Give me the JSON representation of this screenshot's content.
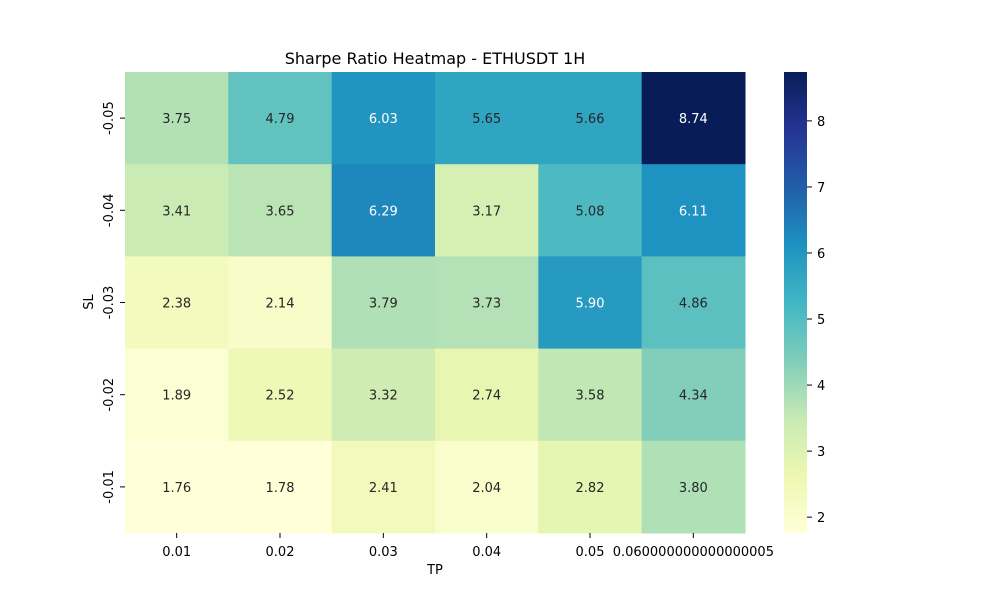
{
  "chart_data": {
    "type": "heatmap",
    "title": "Sharpe Ratio Heatmap - ETHUSDT 1H",
    "xlabel": "TP",
    "ylabel": "SL",
    "x_categories": [
      "0.01",
      "0.02",
      "0.03",
      "0.04",
      "0.05",
      "0.060000000000000005"
    ],
    "y_categories": [
      "-0.05",
      "-0.04",
      "-0.03",
      "-0.02",
      "-0.01"
    ],
    "values": [
      [
        3.75,
        4.79,
        6.03,
        5.65,
        5.66,
        8.74
      ],
      [
        3.41,
        3.65,
        6.29,
        3.17,
        5.08,
        6.11
      ],
      [
        2.38,
        2.14,
        3.79,
        3.73,
        5.9,
        4.86
      ],
      [
        1.89,
        2.52,
        3.32,
        2.74,
        3.58,
        4.34
      ],
      [
        1.76,
        1.78,
        2.41,
        2.04,
        2.82,
        3.8
      ]
    ],
    "colormap": "YlGnBu",
    "colorbar": {
      "range": [
        1.76,
        8.74
      ],
      "ticks": [
        "2",
        "3",
        "4",
        "5",
        "6",
        "7",
        "8"
      ]
    },
    "annotations": true,
    "value_format": "2 decimals"
  }
}
